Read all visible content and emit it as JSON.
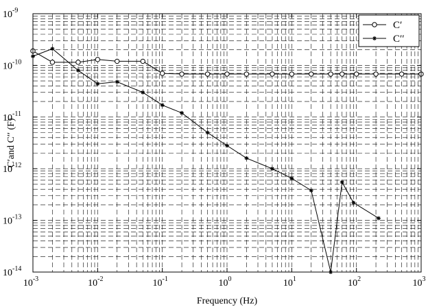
{
  "chart_data": {
    "type": "line",
    "xlabel": "Frequency (Hz)",
    "ylabel": "C′and C′′ (F)",
    "x_scale": "log",
    "y_scale": "log",
    "xlim": [
      0.001,
      1000
    ],
    "ylim": [
      1e-14,
      1e-09
    ],
    "x_ticks": [
      {
        "value": 0.001,
        "base": "10",
        "exp": "-3"
      },
      {
        "value": 0.01,
        "base": "10",
        "exp": "-2"
      },
      {
        "value": 0.1,
        "base": "10",
        "exp": "-1"
      },
      {
        "value": 1,
        "base": "10",
        "exp": "0"
      },
      {
        "value": 10,
        "base": "10",
        "exp": "1"
      },
      {
        "value": 100,
        "base": "10",
        "exp": "2"
      },
      {
        "value": 1000,
        "base": "10",
        "exp": "3"
      }
    ],
    "y_ticks": [
      {
        "value": 1e-14,
        "base": "10",
        "exp": "-14"
      },
      {
        "value": 1e-13,
        "base": "10",
        "exp": "-13"
      },
      {
        "value": 1e-12,
        "base": "10",
        "exp": "-12"
      },
      {
        "value": 1e-11,
        "base": "10",
        "exp": "-11"
      },
      {
        "value": 1e-10,
        "base": "10",
        "exp": "-10"
      },
      {
        "value": 1e-09,
        "base": "10",
        "exp": "-9"
      }
    ],
    "grid": "dashed, major and minor",
    "legend_position": "top-right",
    "series": [
      {
        "name": "C′",
        "marker": "open-circle",
        "x": [
          0.001,
          0.002,
          0.005,
          0.01,
          0.02,
          0.05,
          0.1,
          0.2,
          0.5,
          1,
          2,
          5,
          10,
          20,
          40,
          60,
          100,
          200,
          500,
          1000
        ],
        "y": [
          1.9e-10,
          1.15e-10,
          1.15e-10,
          1.3e-10,
          1.2e-10,
          1.2e-10,
          7e-11,
          6.8e-11,
          6.8e-11,
          6.8e-11,
          6.8e-11,
          6.8e-11,
          6.8e-11,
          6.8e-11,
          6.8e-11,
          6.8e-11,
          6.8e-11,
          6.8e-11,
          6.8e-11,
          6.8e-11
        ]
      },
      {
        "name": "C′′",
        "marker": "star",
        "x": [
          0.001,
          0.002,
          0.005,
          0.01,
          0.02,
          0.05,
          0.1,
          0.2,
          0.5,
          1,
          2,
          5,
          10,
          20,
          40,
          60,
          90,
          220
        ],
        "y": [
          1.5e-10,
          2.1e-10,
          8e-11,
          4.4e-11,
          4.8e-11,
          3e-11,
          1.7e-11,
          1.2e-11,
          5e-12,
          2.8e-12,
          1.6e-12,
          1e-12,
          6.5e-13,
          3.8e-13,
          1e-14,
          5.5e-13,
          2.2e-13,
          1.1e-13
        ]
      }
    ]
  }
}
